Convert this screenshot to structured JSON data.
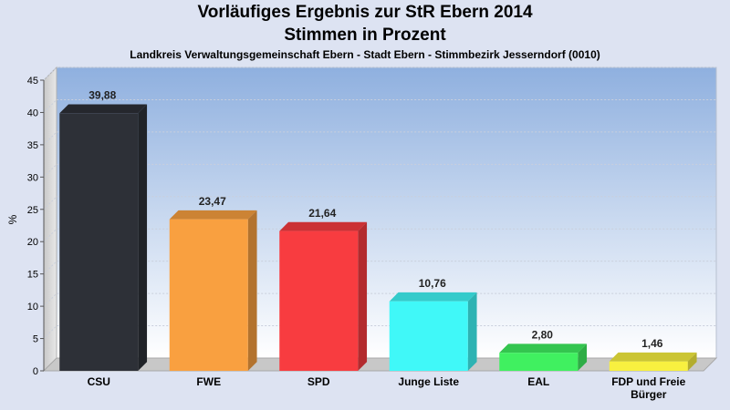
{
  "chart_data": {
    "type": "bar",
    "title": "Vorläufiges Ergebnis zur StR Ebern 2014",
    "subtitle": "Stimmen in Prozent",
    "caption": "Landkreis Verwaltungsgemeinschaft Ebern - Stadt Ebern - Stimmbezirk Jesserndorf (0010)",
    "ylabel": "%",
    "xlabel": "",
    "ylim": [
      0,
      45
    ],
    "yticks": [
      "0",
      "5",
      "10",
      "15",
      "20",
      "25",
      "30",
      "35",
      "40",
      "45"
    ],
    "categories": [
      "CSU",
      "FWE",
      "SPD",
      "Junge Liste",
      "EAL",
      "FDP und Freie Bürger"
    ],
    "values": [
      39.88,
      23.47,
      21.64,
      10.76,
      2.8,
      1.46
    ],
    "value_labels": [
      "39,88",
      "23,47",
      "21,64",
      "10,76",
      "2,80",
      "1,46"
    ],
    "colors": [
      "#2d3037",
      "#f9a040",
      "#f83c40",
      "#40f8f8",
      "#40f060",
      "#f8f040"
    ],
    "grid": true,
    "legend": "none"
  }
}
